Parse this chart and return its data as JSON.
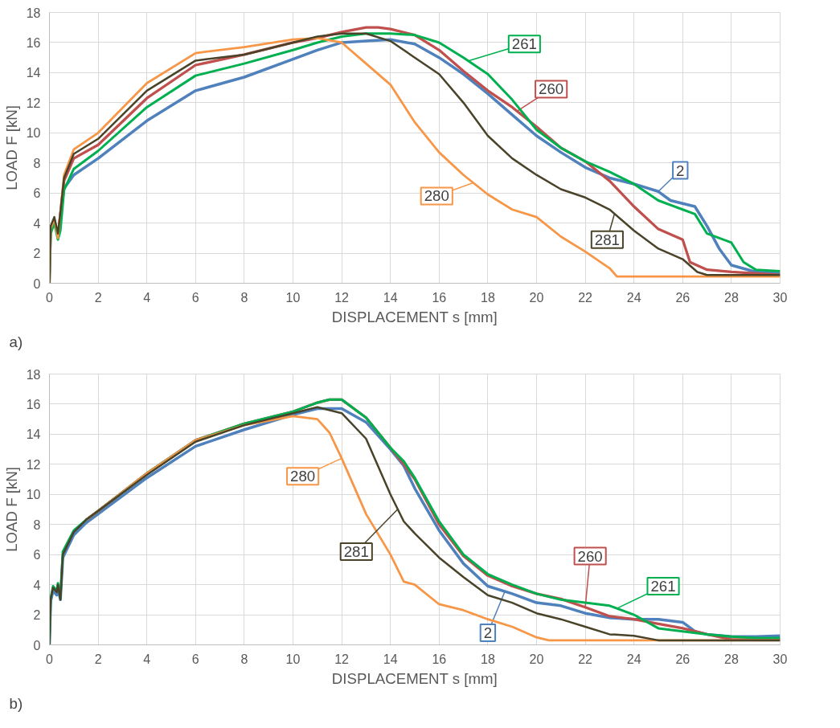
{
  "chart_data": [
    {
      "type": "line",
      "xlabel": "DISPLACEMENT s [mm]",
      "ylabel": "LOAD F [kN]",
      "annotations": [
        "a)"
      ],
      "xlim": [
        0,
        30
      ],
      "ylim": [
        0,
        18
      ],
      "xticks": [
        0,
        2,
        4,
        6,
        8,
        10,
        12,
        14,
        16,
        18,
        20,
        22,
        24,
        26,
        28,
        30
      ],
      "yticks": [
        0,
        2,
        4,
        6,
        8,
        10,
        12,
        14,
        16,
        18
      ],
      "grid": true,
      "legend": false,
      "marker": "none",
      "line_style": "solid",
      "series": [
        {
          "name": "2",
          "color": "#4f81bd",
          "x": [
            0.45,
            0.6,
            1,
            2,
            4,
            6,
            8,
            10,
            11,
            12,
            13,
            14,
            15,
            16,
            17,
            18,
            19,
            20,
            21,
            22,
            23,
            24,
            25,
            25.5,
            26.5,
            27,
            27.5,
            28,
            29,
            30
          ],
          "values": [
            4.5,
            6.3,
            7.2,
            8.3,
            10.8,
            12.8,
            13.7,
            14.9,
            15.5,
            16.0,
            16.1,
            16.2,
            15.9,
            15.0,
            13.9,
            12.6,
            11.2,
            9.8,
            8.7,
            7.7,
            7.0,
            6.6,
            6.1,
            5.5,
            5.1,
            3.8,
            2.3,
            1.2,
            0.75,
            0.65
          ]
        },
        {
          "name": "260",
          "color": "#c0504d",
          "x": [
            0,
            0.05,
            0.2,
            0.35,
            0.45,
            0.6,
            1,
            2,
            4,
            6,
            8,
            10,
            11,
            12,
            13,
            13.5,
            14,
            15,
            16,
            17,
            18,
            19,
            20,
            21,
            22,
            23,
            24,
            25,
            26,
            26.3,
            27,
            28,
            30
          ],
          "values": [
            0,
            3.5,
            4.2,
            3.2,
            4.6,
            6.8,
            8.3,
            9.2,
            12.3,
            14.5,
            15.2,
            16.0,
            16.3,
            16.7,
            17.0,
            17.0,
            16.9,
            16.5,
            15.5,
            14.1,
            12.8,
            11.7,
            10.4,
            9.0,
            8.1,
            6.8,
            5.1,
            3.6,
            2.9,
            1.4,
            0.9,
            0.75,
            0.55
          ]
        },
        {
          "name": "261",
          "color": "#00b050",
          "x": [
            0,
            0.05,
            0.2,
            0.35,
            0.45,
            0.6,
            1,
            2,
            4,
            6,
            8,
            10,
            11,
            12,
            13,
            14,
            15,
            16,
            17,
            18,
            19,
            20,
            21,
            22,
            23,
            24,
            25,
            26,
            26.5,
            27,
            28,
            28.5,
            29,
            30
          ],
          "values": [
            0,
            3.3,
            4.0,
            2.9,
            3.5,
            6.2,
            7.6,
            8.8,
            11.7,
            13.8,
            14.6,
            15.5,
            16.0,
            16.4,
            16.6,
            16.6,
            16.5,
            16.0,
            15.0,
            13.9,
            12.2,
            10.2,
            9.0,
            8.1,
            7.4,
            6.6,
            5.5,
            4.9,
            4.6,
            3.3,
            2.7,
            1.4,
            0.9,
            0.8
          ]
        },
        {
          "name": "280",
          "color": "#f79646",
          "x": [
            0,
            0.05,
            0.2,
            0.35,
            0.45,
            0.6,
            1,
            2,
            4,
            6,
            8,
            10,
            11,
            12,
            13,
            14,
            15,
            16,
            17,
            18,
            19,
            20,
            21,
            22,
            23,
            23.3,
            30
          ],
          "values": [
            0,
            3.6,
            4.3,
            3.0,
            4.8,
            7.2,
            8.9,
            10.0,
            13.3,
            15.3,
            15.7,
            16.2,
            16.3,
            16.0,
            14.6,
            13.2,
            10.7,
            8.7,
            7.2,
            5.9,
            4.9,
            4.4,
            3.1,
            2.1,
            1.0,
            0.45,
            0.45
          ]
        },
        {
          "name": "281",
          "color": "#494429",
          "x": [
            0,
            0.05,
            0.2,
            0.35,
            0.45,
            0.6,
            1,
            2,
            4,
            6,
            8,
            10,
            11,
            12,
            13,
            14,
            15,
            16,
            17,
            18,
            19,
            20,
            21,
            22,
            23,
            24,
            25,
            26,
            26.6,
            27,
            30
          ],
          "values": [
            0,
            3.8,
            4.4,
            3.3,
            4.7,
            7.0,
            8.6,
            9.6,
            12.8,
            14.8,
            15.2,
            16.0,
            16.4,
            16.6,
            16.6,
            16.1,
            15.0,
            13.9,
            12.0,
            9.8,
            8.3,
            7.2,
            6.25,
            5.7,
            4.9,
            3.5,
            2.3,
            1.6,
            0.75,
            0.55,
            0.55
          ]
        }
      ]
    },
    {
      "type": "line",
      "xlabel": "DISPLACEMENT s [mm]",
      "ylabel": "LOAD F [kN]",
      "annotations": [
        "b)"
      ],
      "xlim": [
        0,
        30
      ],
      "ylim": [
        0,
        18
      ],
      "xticks": [
        0,
        2,
        4,
        6,
        8,
        10,
        12,
        14,
        16,
        18,
        20,
        22,
        24,
        26,
        28,
        30
      ],
      "yticks": [
        0,
        2,
        4,
        6,
        8,
        10,
        12,
        14,
        16,
        18
      ],
      "grid": true,
      "legend": false,
      "marker": "none",
      "line_style": "solid",
      "series": [
        {
          "name": "2",
          "color": "#4f81bd",
          "x": [
            0,
            0.05,
            0.15,
            0.3,
            0.35,
            0.45,
            0.55,
            1,
            1.5,
            2,
            4,
            6,
            8,
            10,
            11,
            12,
            13,
            14,
            14.55,
            15,
            16,
            17,
            18,
            19,
            20,
            21,
            22,
            23,
            24,
            25,
            26,
            26.5,
            27,
            28,
            29,
            30
          ],
          "values": [
            0,
            2.9,
            3.6,
            3.3,
            3.8,
            3.0,
            5.8,
            7.3,
            8.1,
            8.7,
            11.1,
            13.2,
            14.3,
            15.3,
            15.7,
            15.7,
            14.8,
            13.0,
            11.9,
            10.4,
            7.6,
            5.4,
            3.9,
            3.4,
            2.8,
            2.6,
            2.1,
            1.8,
            1.7,
            1.7,
            1.5,
            0.9,
            0.7,
            0.55,
            0.55,
            0.6
          ]
        },
        {
          "name": "260",
          "color": "#c0504d",
          "x": [
            1.5,
            2,
            4,
            6,
            8,
            10,
            11,
            11.5,
            12,
            13,
            14,
            14.55,
            15,
            16,
            17,
            18,
            19,
            20,
            21,
            22,
            23,
            24,
            25,
            26,
            27,
            28,
            30
          ],
          "values": [
            8.3,
            8.9,
            11.4,
            13.6,
            14.7,
            15.5,
            16.1,
            16.3,
            16.3,
            15.1,
            13.1,
            12.0,
            11.0,
            8.0,
            5.9,
            4.6,
            3.9,
            3.4,
            3.05,
            2.5,
            1.9,
            1.7,
            1.4,
            1.1,
            0.7,
            0.35,
            0.35
          ]
        },
        {
          "name": "261",
          "color": "#00b050",
          "x": [
            0,
            0.05,
            0.15,
            0.3,
            0.35,
            0.45,
            0.55,
            1,
            1.5,
            2,
            4,
            6,
            8,
            10,
            11,
            11.5,
            12,
            13,
            14,
            14.55,
            15,
            16,
            17,
            18,
            19,
            20,
            21,
            22,
            23,
            24,
            25,
            26,
            27,
            28,
            29,
            30
          ],
          "values": [
            0,
            3.1,
            3.9,
            3.6,
            4.1,
            3.1,
            6.2,
            7.6,
            8.3,
            8.9,
            11.4,
            13.6,
            14.7,
            15.5,
            16.1,
            16.3,
            16.3,
            15.1,
            13.1,
            12.2,
            11.1,
            8.2,
            6.0,
            4.7,
            4.0,
            3.4,
            3.0,
            2.8,
            2.6,
            2.0,
            1.1,
            0.9,
            0.7,
            0.55,
            0.45,
            0.45
          ]
        },
        {
          "name": "280",
          "color": "#f79646",
          "x": [
            1.5,
            2,
            4,
            6,
            8,
            10,
            11,
            11.5,
            12,
            13,
            14,
            14.55,
            15,
            16,
            17,
            18,
            19,
            20,
            20.5,
            30
          ],
          "values": [
            8.3,
            8.9,
            11.4,
            13.6,
            14.6,
            15.2,
            15.0,
            14.1,
            12.4,
            8.7,
            6.0,
            4.2,
            4.0,
            2.7,
            2.3,
            1.7,
            1.2,
            0.5,
            0.3,
            0.3
          ]
        },
        {
          "name": "281",
          "color": "#494429",
          "x": [
            0,
            0.05,
            0.15,
            0.3,
            0.35,
            0.45,
            0.55,
            1,
            1.5,
            2,
            4,
            6,
            8,
            10,
            11,
            12,
            13,
            14,
            14.55,
            15,
            16,
            17,
            18,
            19,
            20,
            21,
            22,
            23,
            24,
            25,
            30
          ],
          "values": [
            0,
            3.0,
            3.8,
            3.5,
            4.0,
            3.0,
            6.0,
            7.5,
            8.3,
            8.9,
            11.3,
            13.5,
            14.6,
            15.4,
            15.8,
            15.4,
            13.7,
            10.0,
            8.2,
            7.4,
            5.8,
            4.5,
            3.3,
            2.8,
            2.1,
            1.7,
            1.2,
            0.7,
            0.6,
            0.3,
            0.3
          ]
        }
      ]
    }
  ]
}
